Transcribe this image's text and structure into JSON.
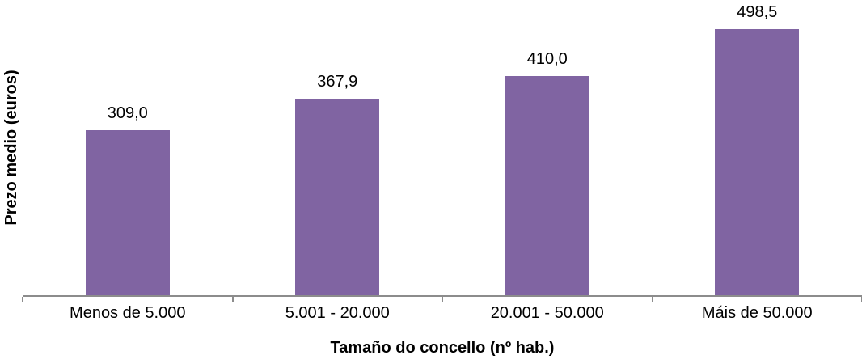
{
  "chart_data": {
    "type": "bar",
    "categories": [
      "Menos de 5.000",
      "5.001 - 20.000",
      "20.001 - 50.000",
      "Máis de 50.000"
    ],
    "values": [
      309.0,
      367.9,
      410.0,
      498.5
    ],
    "value_labels": [
      "309,0",
      "367,9",
      "410,0",
      "498,5"
    ],
    "title": "",
    "xlabel": "Tamaño do concello (nº hab.)",
    "ylabel": "Prezo medio (euros)",
    "ylim": [
      0,
      550
    ],
    "grid": false,
    "legend_position": "none",
    "bar_color": "#8064A2",
    "axis_color": "#8C8C8C",
    "text_color": "#000000"
  }
}
